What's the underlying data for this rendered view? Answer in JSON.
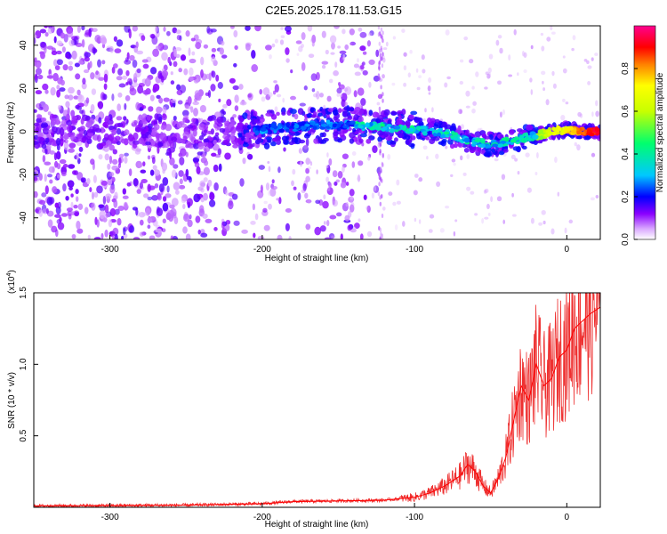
{
  "title": "C2E5.2025.178.11.53.G15",
  "chart_data": [
    {
      "type": "heatmap",
      "xlabel": "Height of straight line (km)",
      "ylabel": "Frequency (Hz)",
      "xlim": [
        -350,
        22
      ],
      "ylim": [
        -50,
        49
      ],
      "xticks": [
        -300,
        -200,
        -100,
        0
      ],
      "yticks": [
        -40,
        -20,
        0,
        20,
        40
      ],
      "colorbar": {
        "label": "Normalized spectral amplitude",
        "range": [
          0,
          1
        ],
        "ticks": [
          "0.0",
          "0.2",
          "0.4",
          "0.6",
          "0.8"
        ],
        "tick_values": [
          0,
          0.2,
          0.4,
          0.6,
          0.8
        ],
        "colormap": [
          "#ffffff",
          "#8a00ff",
          "#0000ff",
          "#00c8ff",
          "#00ff6e",
          "#ffff00",
          "#ff0000",
          "#ff0090"
        ]
      },
      "ridge": {
        "x": [
          -220,
          -200,
          -180,
          -160,
          -140,
          -120,
          -100,
          -85,
          -70,
          -60,
          -50,
          -40,
          -30,
          -20,
          -10,
          0,
          10,
          22
        ],
        "y": [
          0,
          1,
          2,
          3,
          3,
          2,
          1,
          0,
          -3,
          -5,
          -6,
          -5,
          -3,
          -2,
          0,
          1,
          0,
          0
        ]
      },
      "grid": false
    },
    {
      "type": "line",
      "xlabel": "Height of straight line (km)",
      "ylabel": "SNR (10 * v/v)",
      "y_scale_note": "(x10^4)",
      "xlim": [
        -350,
        22
      ],
      "ylim": [
        0,
        1.5
      ],
      "xticks": [
        -300,
        -200,
        -100,
        0
      ],
      "yticks": [
        "0.5",
        "1.0",
        "1.5"
      ],
      "ytick_values": [
        0.5,
        1.0,
        1.5
      ],
      "series": [
        {
          "color": "#ff0000",
          "x": [
            -350,
            -300,
            -250,
            -200,
            -180,
            -150,
            -120,
            -100,
            -90,
            -80,
            -70,
            -65,
            -60,
            -55,
            -50,
            -45,
            -40,
            -35,
            -30,
            -25,
            -20,
            -15,
            -10,
            -5,
            0,
            5,
            10,
            15,
            22
          ],
          "y": [
            0.01,
            0.012,
            0.015,
            0.025,
            0.04,
            0.045,
            0.05,
            0.07,
            0.1,
            0.15,
            0.22,
            0.3,
            0.25,
            0.15,
            0.1,
            0.2,
            0.35,
            0.6,
            0.85,
            0.75,
            1.0,
            0.85,
            0.9,
            1.05,
            1.1,
            1.25,
            1.3,
            1.35,
            1.4
          ]
        }
      ],
      "grid": false
    }
  ]
}
